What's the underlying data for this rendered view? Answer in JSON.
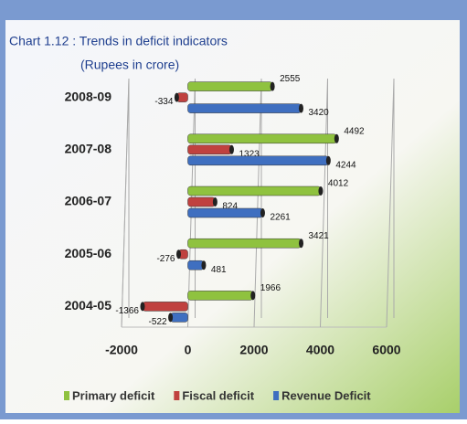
{
  "chart_data": {
    "type": "bar",
    "title": "Chart 1.12 : Trends in deficit indicators",
    "subtitle": "(Rupees in crore)",
    "categories": [
      "2008-09",
      "2007-08",
      "2006-07",
      "2005-06",
      "2004-05"
    ],
    "series": [
      {
        "name": "Primary deficit",
        "color": "#8fc23f",
        "values": [
          2555,
          4492,
          4012,
          3421,
          1966
        ]
      },
      {
        "name": "Fiscal deficit",
        "color": "#c0413f",
        "values": [
          -334,
          1323,
          824,
          -276,
          -1366
        ]
      },
      {
        "name": "Revenue Deficit",
        "color": "#3f6fc0",
        "values": [
          3420,
          4244,
          2261,
          481,
          -522
        ]
      }
    ],
    "xlim": [
      -2000,
      6000
    ],
    "xticks": [
      -2000,
      0,
      2000,
      4000,
      6000
    ],
    "grid": true
  }
}
